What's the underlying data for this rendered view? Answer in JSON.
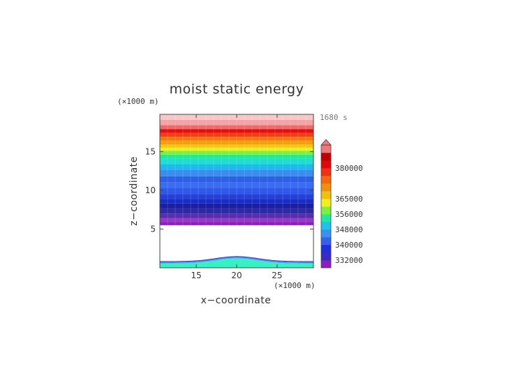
{
  "chart_data": {
    "type": "heatmap",
    "title": "moist static energy",
    "xlabel": "x−coordinate",
    "ylabel": "z−coordinate",
    "x_unit": "(×1000 m)",
    "y_unit": "(×1000 m)",
    "time_label": "1680 s",
    "xlim": [
      10.5,
      29.5
    ],
    "ylim": [
      0,
      19.8
    ],
    "x_ticks": [
      15,
      20,
      25
    ],
    "y_ticks": [
      5,
      10,
      15
    ],
    "grid": false,
    "colorbar": {
      "position": "right",
      "tick_labels": [
        "332000",
        "340000",
        "348000",
        "356000",
        "365000",
        "380000"
      ],
      "colors": [
        "#8a1fbf",
        "#3a2abf",
        "#1f2fdd",
        "#3760f0",
        "#3c90f0",
        "#20c0f0",
        "#20e8a0",
        "#7cf040",
        "#f0f020",
        "#f0c010",
        "#f09010",
        "#f06810",
        "#f03010",
        "#e00808",
        "#c00000",
        "#f07878"
      ],
      "extend": "max"
    },
    "layers": [
      {
        "z_bottom": 5.5,
        "z_top": 5.9,
        "color": "#8a1fbf"
      },
      {
        "z_bottom": 5.9,
        "z_top": 6.4,
        "color": "#9c36c8"
      },
      {
        "z_bottom": 6.4,
        "z_top": 7.0,
        "color": "#5a2ab0"
      },
      {
        "z_bottom": 7.0,
        "z_top": 7.7,
        "color": "#2d2aa8"
      },
      {
        "z_bottom": 7.7,
        "z_top": 8.3,
        "color": "#1a1fa0"
      },
      {
        "z_bottom": 8.3,
        "z_top": 8.9,
        "color": "#1a2dc0"
      },
      {
        "z_bottom": 8.9,
        "z_top": 9.5,
        "color": "#2440d8"
      },
      {
        "z_bottom": 9.5,
        "z_top": 10.3,
        "color": "#2f58e8"
      },
      {
        "z_bottom": 10.3,
        "z_top": 11.0,
        "color": "#3a6cf0"
      },
      {
        "z_bottom": 11.0,
        "z_top": 11.8,
        "color": "#2f5ee8"
      },
      {
        "z_bottom": 11.8,
        "z_top": 12.6,
        "color": "#3c8cf0"
      },
      {
        "z_bottom": 12.6,
        "z_top": 13.4,
        "color": "#1fb8f0"
      },
      {
        "z_bottom": 13.4,
        "z_top": 14.1,
        "color": "#22dcd0"
      },
      {
        "z_bottom": 14.1,
        "z_top": 14.6,
        "color": "#20e8a0"
      },
      {
        "z_bottom": 14.6,
        "z_top": 15.1,
        "color": "#7cf040"
      },
      {
        "z_bottom": 15.1,
        "z_top": 15.5,
        "color": "#e8f020"
      },
      {
        "z_bottom": 15.5,
        "z_top": 15.9,
        "color": "#f0c810"
      },
      {
        "z_bottom": 15.9,
        "z_top": 16.4,
        "color": "#f0a010"
      },
      {
        "z_bottom": 16.4,
        "z_top": 16.9,
        "color": "#f07a10"
      },
      {
        "z_bottom": 16.9,
        "z_top": 17.4,
        "color": "#f04010"
      },
      {
        "z_bottom": 17.4,
        "z_top": 17.9,
        "color": "#e80c0c"
      },
      {
        "z_bottom": 17.9,
        "z_top": 18.4,
        "color": "#f06868"
      },
      {
        "z_bottom": 18.4,
        "z_top": 19.1,
        "color": "#f4a4a4"
      },
      {
        "z_bottom": 19.1,
        "z_top": 19.8,
        "color": "#f8c8c8"
      }
    ],
    "surface_layers": [
      {
        "base": 0.0,
        "peak_extra": 0.65,
        "thickness": 0.55,
        "color": "#3af0c0"
      },
      {
        "base": 0.55,
        "peak_extra": 0.65,
        "thickness": 0.12,
        "color": "#20c0f0"
      },
      {
        "base": 0.67,
        "peak_extra": 0.65,
        "thickness": 0.1,
        "color": "#3a6cf0"
      },
      {
        "base": 0.77,
        "peak_extra": 0.65,
        "thickness": 0.08,
        "color": "#3a2abf"
      }
    ],
    "hill": {
      "center": 20,
      "half_width": 4.0
    }
  }
}
